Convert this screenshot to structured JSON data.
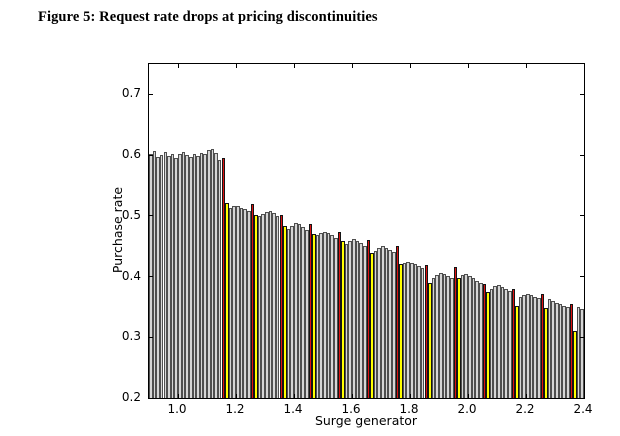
{
  "figure": {
    "caption": "Figure 5: Request rate drops at pricing discontinuities"
  },
  "chart_data": {
    "type": "bar",
    "title": "",
    "xlabel": "Surge generator",
    "ylabel": "Purchase rate",
    "xlim": [
      0.9,
      2.4
    ],
    "ylim": [
      0.2,
      0.75
    ],
    "xticks": [
      1.0,
      1.2,
      1.4,
      1.6,
      1.8,
      2.0,
      2.2,
      2.4
    ],
    "yticks": [
      0.2,
      0.3,
      0.4,
      0.5,
      0.6,
      0.7
    ],
    "grid": false,
    "legend": false,
    "bar_x_start": 0.9,
    "bar_x_step": 0.0125,
    "colors": {
      "gray_fill": "#d6d6d6",
      "gray_edge": "#4f4f4f",
      "red_fill": "#dd1111",
      "yellow_fill": "#ffff00",
      "highlight_edge": "#141414",
      "frame": "#000000"
    },
    "red_bars_at_x": [
      1.15,
      1.25,
      1.35,
      1.45,
      1.55,
      1.65,
      1.75,
      1.85,
      1.95,
      2.05,
      2.15,
      2.25,
      2.35
    ],
    "yellow_bars_at_x": [
      1.1625,
      1.2625,
      1.3625,
      1.4625,
      1.5625,
      1.6625,
      1.7625,
      1.8625,
      1.9625,
      2.0625,
      2.1625,
      2.2625,
      2.3625
    ],
    "values": [
      0.602,
      0.607,
      0.597,
      0.6,
      0.605,
      0.599,
      0.602,
      0.596,
      0.601,
      0.605,
      0.6,
      0.597,
      0.602,
      0.599,
      0.604,
      0.601,
      0.608,
      0.61,
      0.603,
      0.592,
      0.595,
      0.521,
      0.513,
      0.516,
      0.517,
      0.513,
      0.511,
      0.508,
      0.519,
      0.502,
      0.499,
      0.503,
      0.506,
      0.508,
      0.504,
      0.499,
      0.501,
      0.483,
      0.479,
      0.484,
      0.488,
      0.486,
      0.481,
      0.477,
      0.486,
      0.47,
      0.468,
      0.472,
      0.474,
      0.471,
      0.468,
      0.464,
      0.474,
      0.458,
      0.454,
      0.459,
      0.462,
      0.459,
      0.455,
      0.451,
      0.46,
      0.439,
      0.442,
      0.447,
      0.45,
      0.447,
      0.443,
      0.44,
      0.45,
      0.42,
      0.422,
      0.424,
      0.423,
      0.42,
      0.417,
      0.414,
      0.419,
      0.39,
      0.398,
      0.403,
      0.406,
      0.404,
      0.401,
      0.397,
      0.415,
      0.397,
      0.403,
      0.405,
      0.401,
      0.397,
      0.393,
      0.389,
      0.387,
      0.374,
      0.379,
      0.384,
      0.386,
      0.383,
      0.38,
      0.377,
      0.379,
      0.351,
      0.366,
      0.37,
      0.372,
      0.369,
      0.367,
      0.365,
      0.372,
      0.348,
      0.363,
      0.36,
      0.357,
      0.355,
      0.352,
      0.35,
      0.355,
      0.31,
      0.35,
      0.346
    ]
  }
}
